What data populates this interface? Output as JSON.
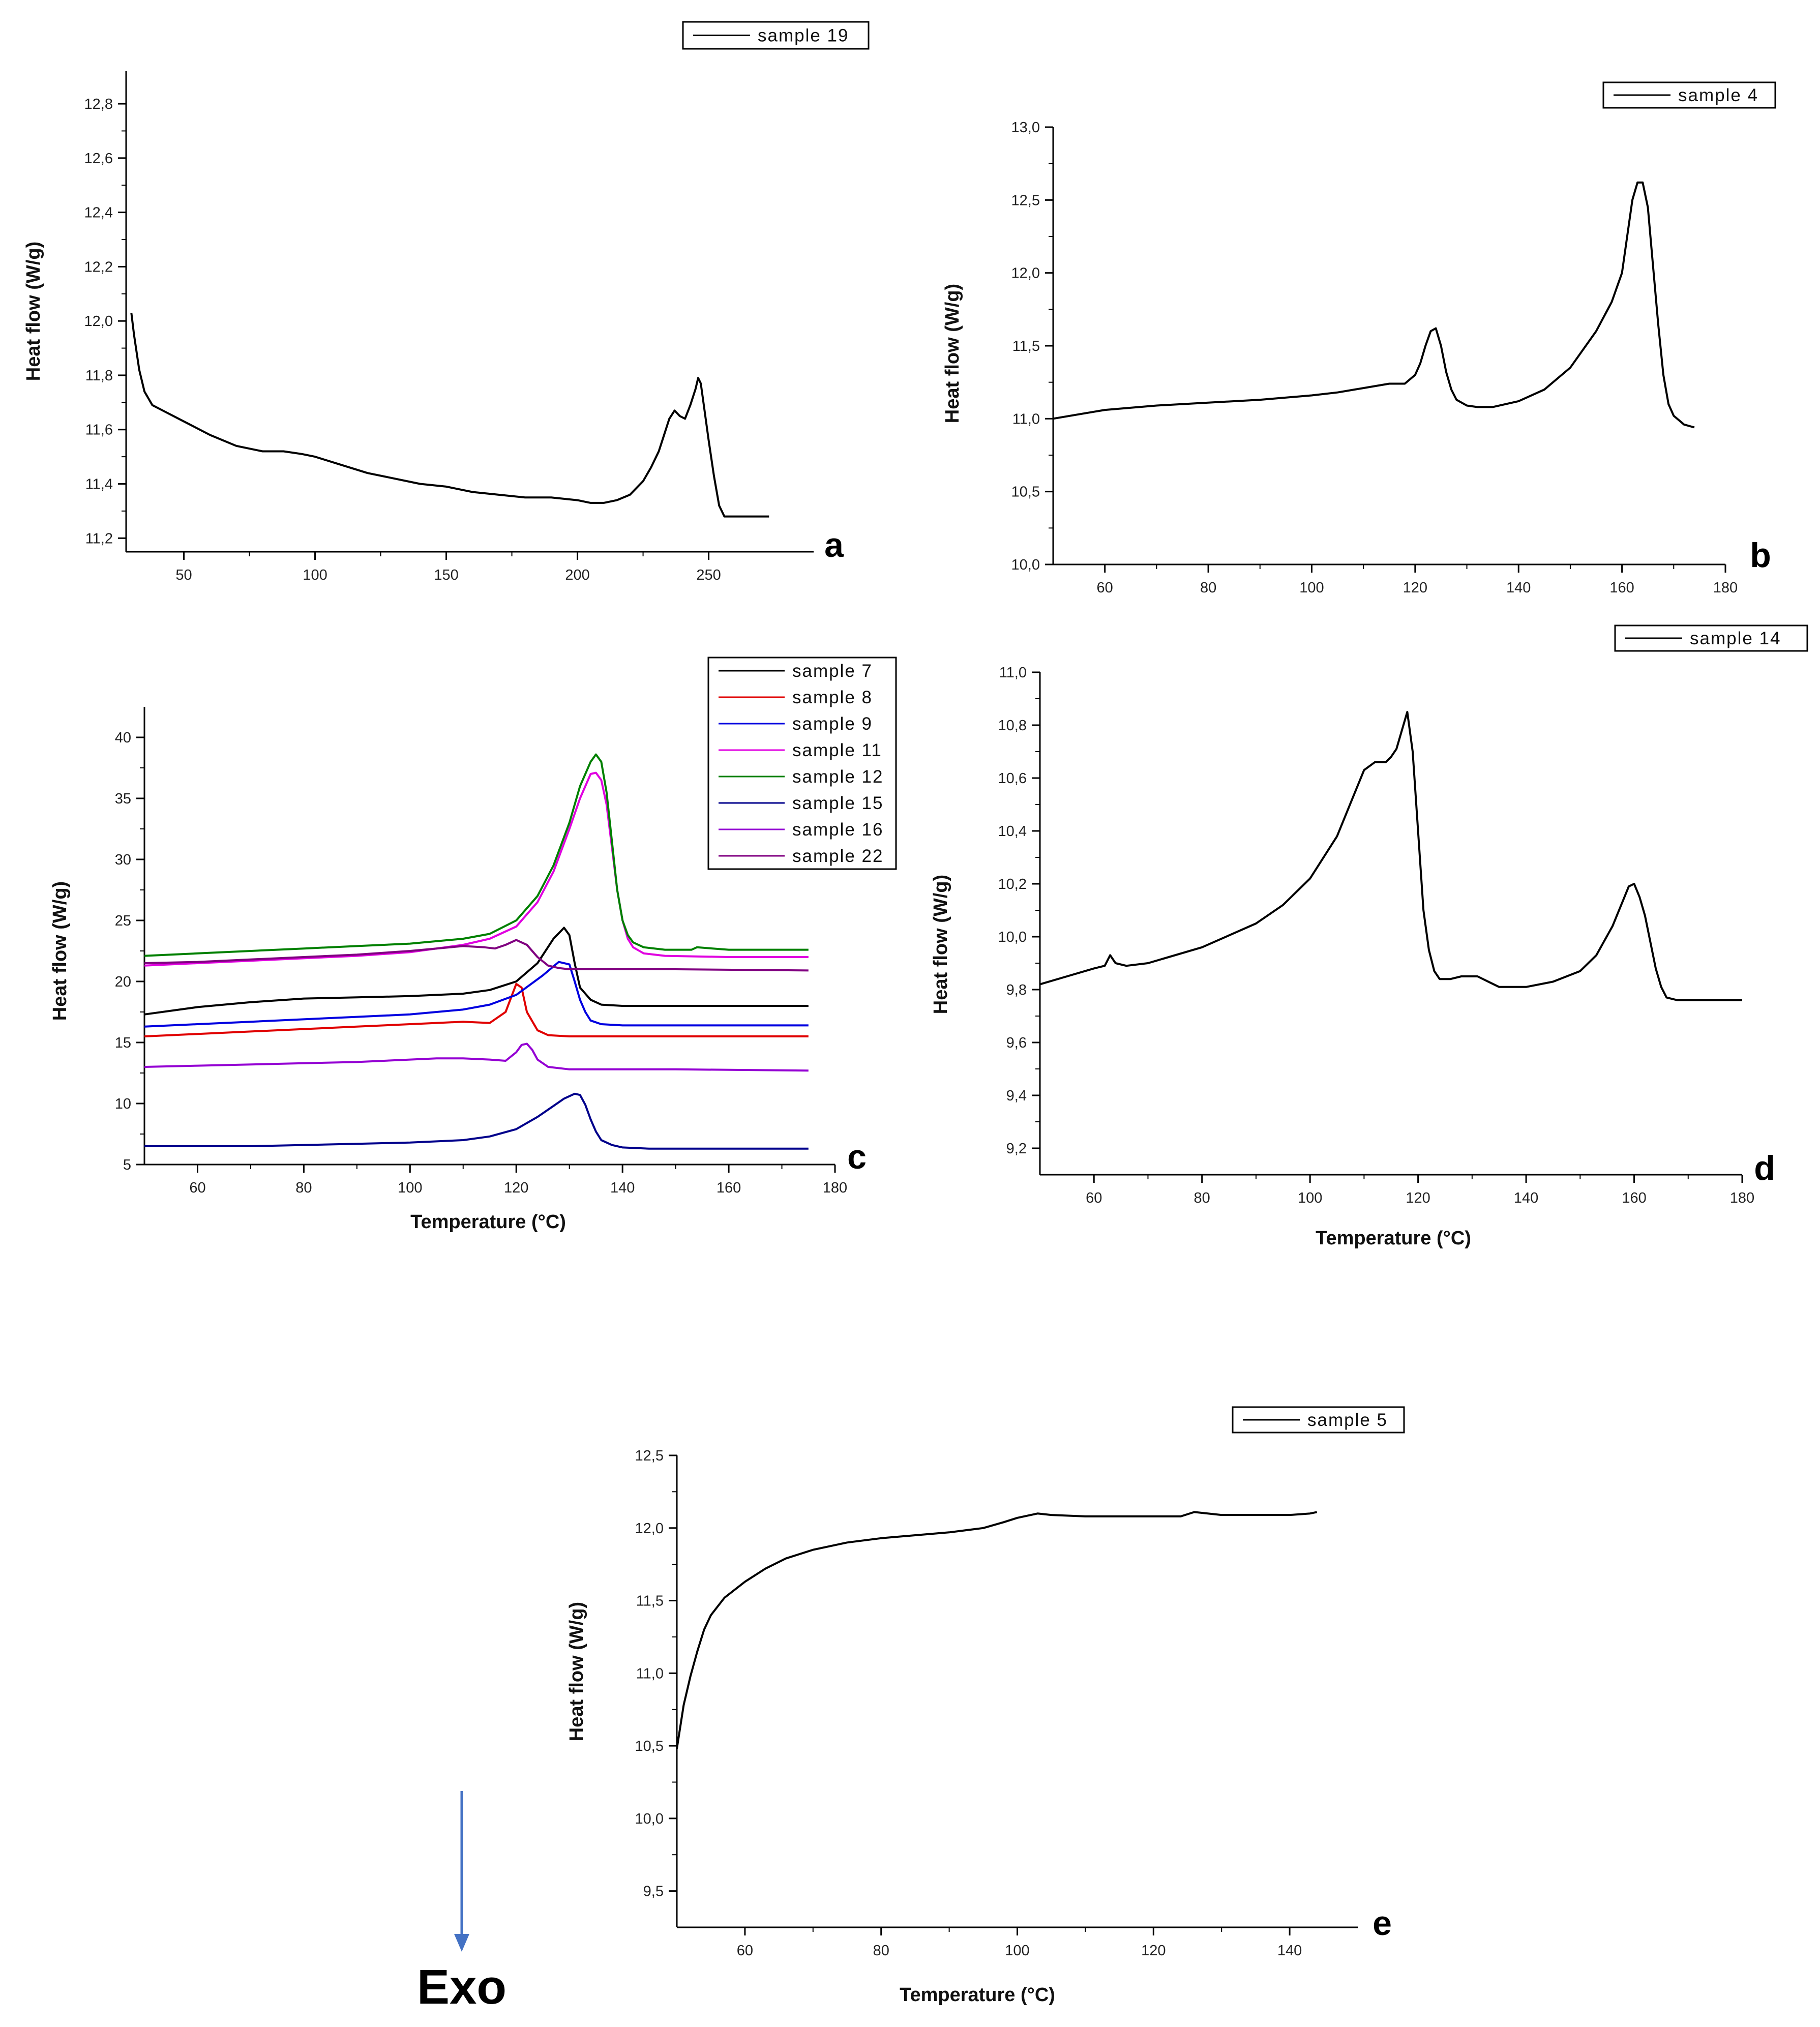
{
  "figure": {
    "exo_label": "Exo",
    "exo_arrow_color": "#4472C4"
  },
  "chart_data": [
    {
      "id": "a",
      "type": "line",
      "panel_label": "a",
      "xlabel": "",
      "ylabel": "Heat flow (W/g)",
      "xlim": [
        28,
        290
      ],
      "ylim": [
        11.15,
        12.92
      ],
      "xticks": [
        50,
        100,
        150,
        200,
        250
      ],
      "xtick_labels": [
        "50",
        "100",
        "150",
        "200",
        "250"
      ],
      "yticks": [
        11.2,
        11.4,
        11.6,
        11.8,
        12.0,
        12.2,
        12.4,
        12.6,
        12.8
      ],
      "ytick_labels": [
        "11,2",
        "11,4",
        "11,6",
        "11,8",
        "12,0",
        "12,2",
        "12,4",
        "12,6",
        "12,8"
      ],
      "legend_position": "top-right",
      "series": [
        {
          "name": "sample 19",
          "color": "#000000",
          "x": [
            30,
            31,
            33,
            35,
            38,
            42,
            50,
            60,
            70,
            80,
            88,
            95,
            100,
            110,
            120,
            130,
            140,
            150,
            160,
            170,
            180,
            190,
            200,
            205,
            210,
            215,
            220,
            225,
            228,
            231,
            233,
            235,
            237,
            239,
            241,
            243,
            245,
            246,
            247,
            248,
            250,
            252,
            254,
            256,
            260,
            265,
            270,
            273
          ],
          "y": [
            12.03,
            11.95,
            11.82,
            11.74,
            11.69,
            11.67,
            11.63,
            11.58,
            11.54,
            11.52,
            11.52,
            11.51,
            11.5,
            11.47,
            11.44,
            11.42,
            11.4,
            11.39,
            11.37,
            11.36,
            11.35,
            11.35,
            11.34,
            11.33,
            11.33,
            11.34,
            11.36,
            11.41,
            11.46,
            11.52,
            11.58,
            11.64,
            11.67,
            11.65,
            11.64,
            11.69,
            11.75,
            11.79,
            11.77,
            11.7,
            11.56,
            11.43,
            11.32,
            11.28,
            11.28,
            11.28,
            11.28,
            11.28
          ]
        }
      ]
    },
    {
      "id": "b",
      "type": "line",
      "panel_label": "b",
      "xlabel": "",
      "ylabel": "Heat flow (W/g)",
      "xlim": [
        50,
        180
      ],
      "ylim": [
        10.0,
        13.0
      ],
      "xticks": [
        60,
        80,
        100,
        120,
        140,
        160,
        180
      ],
      "xtick_labels": [
        "60",
        "80",
        "100",
        "120",
        "140",
        "160",
        "180"
      ],
      "yticks": [
        10.0,
        10.5,
        11.0,
        11.5,
        12.0,
        12.5,
        13.0
      ],
      "ytick_labels": [
        "10,0",
        "10,5",
        "11,0",
        "11,5",
        "12,0",
        "12,5",
        "13,0"
      ],
      "legend_position": "top-right",
      "series": [
        {
          "name": "sample 4",
          "color": "#000000",
          "x": [
            50,
            55,
            60,
            70,
            80,
            90,
            100,
            105,
            110,
            115,
            118,
            120,
            121,
            122,
            123,
            124,
            125,
            126,
            127,
            128,
            130,
            132,
            135,
            140,
            145,
            150,
            155,
            158,
            160,
            161,
            162,
            163,
            164,
            165,
            166,
            167,
            168,
            169,
            170,
            172,
            174
          ],
          "y": [
            11.0,
            11.03,
            11.06,
            11.09,
            11.11,
            11.13,
            11.16,
            11.18,
            11.21,
            11.24,
            11.24,
            11.3,
            11.38,
            11.5,
            11.6,
            11.62,
            11.5,
            11.32,
            11.2,
            11.13,
            11.09,
            11.08,
            11.08,
            11.12,
            11.2,
            11.35,
            11.6,
            11.8,
            12.0,
            12.25,
            12.5,
            12.62,
            12.62,
            12.45,
            12.05,
            11.65,
            11.3,
            11.1,
            11.02,
            10.96,
            10.94
          ]
        }
      ]
    },
    {
      "id": "c",
      "type": "line",
      "panel_label": "c",
      "xlabel": "Temperature (°C)",
      "ylabel": "Heat flow (W/g)",
      "xlim": [
        50,
        180
      ],
      "ylim": [
        5,
        42.5
      ],
      "xticks": [
        60,
        80,
        100,
        120,
        140,
        160,
        180
      ],
      "xtick_labels": [
        "60",
        "80",
        "100",
        "120",
        "140",
        "160",
        "180"
      ],
      "yticks": [
        5,
        10,
        15,
        20,
        25,
        30,
        35,
        40
      ],
      "ytick_labels": [
        "5",
        "10",
        "15",
        "20",
        "25",
        "30",
        "35",
        "40"
      ],
      "legend_position": "top-right",
      "series": [
        {
          "name": "sample 7",
          "color": "#000000",
          "x": [
            50,
            60,
            70,
            80,
            90,
            100,
            110,
            115,
            120,
            124,
            127,
            129,
            130,
            131,
            132,
            134,
            136,
            140,
            150,
            160,
            175
          ],
          "y": [
            17.3,
            17.9,
            18.3,
            18.6,
            18.7,
            18.8,
            19.0,
            19.3,
            20.0,
            21.5,
            23.5,
            24.4,
            23.8,
            21.5,
            19.5,
            18.5,
            18.1,
            18.0,
            18.0,
            18.0,
            18.0
          ]
        },
        {
          "name": "sample 8",
          "color": "#E00000",
          "x": [
            50,
            60,
            70,
            80,
            90,
            100,
            105,
            110,
            115,
            118,
            120,
            121,
            122,
            124,
            126,
            130,
            140,
            150,
            175
          ],
          "y": [
            15.5,
            15.7,
            15.9,
            16.1,
            16.3,
            16.5,
            16.6,
            16.7,
            16.6,
            17.5,
            19.8,
            19.5,
            17.5,
            16.0,
            15.6,
            15.5,
            15.5,
            15.5,
            15.5
          ]
        },
        {
          "name": "sample 9",
          "color": "#0000E0",
          "x": [
            50,
            60,
            70,
            80,
            90,
            100,
            110,
            115,
            120,
            125,
            128,
            130,
            131,
            132,
            133,
            134,
            136,
            140,
            150,
            175
          ],
          "y": [
            16.3,
            16.5,
            16.7,
            16.9,
            17.1,
            17.3,
            17.7,
            18.1,
            18.9,
            20.5,
            21.6,
            21.4,
            20.0,
            18.5,
            17.5,
            16.8,
            16.5,
            16.4,
            16.4,
            16.4
          ]
        },
        {
          "name": "sample 11",
          "color": "#E000E0",
          "x": [
            50,
            60,
            70,
            80,
            90,
            100,
            110,
            115,
            120,
            124,
            127,
            130,
            132,
            134,
            135,
            136,
            137,
            138,
            139,
            140,
            141,
            142,
            144,
            148,
            160,
            175
          ],
          "y": [
            21.3,
            21.5,
            21.7,
            21.9,
            22.1,
            22.4,
            23.0,
            23.5,
            24.5,
            26.5,
            29.0,
            32.5,
            35.0,
            37.0,
            37.1,
            36.5,
            34.5,
            31.0,
            27.5,
            25.0,
            23.5,
            22.8,
            22.3,
            22.1,
            22.0,
            22.0
          ]
        },
        {
          "name": "sample 12",
          "color": "#008000",
          "x": [
            50,
            60,
            70,
            80,
            90,
            100,
            110,
            115,
            120,
            124,
            127,
            130,
            132,
            134,
            135,
            136,
            137,
            138,
            139,
            140,
            141,
            142,
            144,
            148,
            153,
            154,
            160,
            175
          ],
          "y": [
            22.1,
            22.3,
            22.5,
            22.7,
            22.9,
            23.1,
            23.5,
            23.9,
            25.0,
            27.0,
            29.5,
            33.0,
            36.0,
            38.0,
            38.6,
            38.0,
            35.5,
            31.5,
            27.5,
            25.0,
            23.8,
            23.2,
            22.8,
            22.6,
            22.6,
            22.8,
            22.6,
            22.6
          ]
        },
        {
          "name": "sample 15",
          "color": "#00008B",
          "x": [
            50,
            60,
            70,
            80,
            90,
            100,
            110,
            115,
            120,
            124,
            127,
            129,
            131,
            132,
            133,
            134,
            135,
            136,
            138,
            140,
            145,
            150,
            175
          ],
          "y": [
            6.5,
            6.5,
            6.5,
            6.6,
            6.7,
            6.8,
            7.0,
            7.3,
            7.9,
            8.9,
            9.8,
            10.4,
            10.8,
            10.7,
            9.9,
            8.7,
            7.7,
            7.0,
            6.6,
            6.4,
            6.3,
            6.3,
            6.3
          ]
        },
        {
          "name": "sample 16",
          "color": "#9400D3",
          "x": [
            50,
            60,
            70,
            80,
            90,
            100,
            105,
            110,
            115,
            118,
            120,
            121,
            122,
            123,
            124,
            126,
            130,
            140,
            150,
            175
          ],
          "y": [
            13.0,
            13.1,
            13.2,
            13.3,
            13.4,
            13.6,
            13.7,
            13.7,
            13.6,
            13.5,
            14.2,
            14.8,
            14.9,
            14.4,
            13.6,
            13.0,
            12.8,
            12.8,
            12.8,
            12.7
          ]
        },
        {
          "name": "sample 22",
          "color": "#800080",
          "x": [
            50,
            60,
            70,
            80,
            90,
            100,
            105,
            110,
            114,
            116,
            118,
            120,
            122,
            124,
            126,
            128,
            130,
            135,
            140,
            150,
            175
          ],
          "y": [
            21.5,
            21.6,
            21.8,
            22.0,
            22.2,
            22.5,
            22.7,
            22.9,
            22.8,
            22.7,
            23.0,
            23.4,
            23.0,
            22.0,
            21.3,
            21.1,
            21.0,
            21.0,
            21.0,
            21.0,
            20.9
          ]
        }
      ]
    },
    {
      "id": "d",
      "type": "line",
      "panel_label": "d",
      "xlabel": "Temperature (°C)",
      "ylabel": "Heat flow (W/g)",
      "xlim": [
        50,
        180
      ],
      "ylim": [
        9.1,
        11.0
      ],
      "xticks": [
        60,
        80,
        100,
        120,
        140,
        160,
        180
      ],
      "xtick_labels": [
        "60",
        "80",
        "100",
        "120",
        "140",
        "160",
        "180"
      ],
      "yticks": [
        9.2,
        9.4,
        9.6,
        9.8,
        10.0,
        10.2,
        10.4,
        10.6,
        10.8,
        11.0
      ],
      "ytick_labels": [
        "9,2",
        "9,4",
        "9,6",
        "9,8",
        "10,0",
        "10,2",
        "10,4",
        "10,6",
        "10,8",
        "11,0"
      ],
      "legend_position": "top-right",
      "series": [
        {
          "name": "sample 14",
          "color": "#000000",
          "x": [
            50,
            55,
            60,
            62,
            63,
            64,
            66,
            70,
            80,
            90,
            95,
            100,
            105,
            108,
            110,
            112,
            114,
            115,
            116,
            117,
            118,
            119,
            120,
            121,
            122,
            123,
            124,
            126,
            128,
            130,
            131,
            133,
            135,
            140,
            145,
            150,
            153,
            156,
            158,
            159,
            160,
            161,
            162,
            163,
            164,
            165,
            166,
            168,
            170,
            175,
            180
          ],
          "y": [
            9.82,
            9.85,
            9.88,
            9.89,
            9.93,
            9.9,
            9.89,
            9.9,
            9.96,
            10.05,
            10.12,
            10.22,
            10.38,
            10.53,
            10.63,
            10.66,
            10.66,
            10.68,
            10.71,
            10.78,
            10.85,
            10.7,
            10.4,
            10.1,
            9.95,
            9.87,
            9.84,
            9.84,
            9.85,
            9.85,
            9.85,
            9.83,
            9.81,
            9.81,
            9.83,
            9.87,
            9.93,
            10.04,
            10.14,
            10.19,
            10.2,
            10.15,
            10.08,
            9.98,
            9.88,
            9.81,
            9.77,
            9.76,
            9.76,
            9.76,
            9.76
          ]
        }
      ]
    },
    {
      "id": "e",
      "type": "line",
      "panel_label": "e",
      "xlabel": "Temperature (°C)",
      "ylabel": "Heat flow (W/g)",
      "xlim": [
        50,
        150
      ],
      "ylim": [
        9.25,
        12.5
      ],
      "xticks": [
        60,
        80,
        100,
        120,
        140
      ],
      "xtick_labels": [
        "60",
        "80",
        "100",
        "120",
        "140"
      ],
      "yticks": [
        9.5,
        10.0,
        10.5,
        11.0,
        11.5,
        12.0,
        12.5
      ],
      "ytick_labels": [
        "9,5",
        "10,0",
        "10,5",
        "11,0",
        "11,5",
        "12,0",
        "12,5"
      ],
      "legend_position": "top-right",
      "series": [
        {
          "name": "sample 5",
          "color": "#000000",
          "x": [
            50,
            51,
            52,
            53,
            54,
            55,
            57,
            60,
            63,
            66,
            70,
            75,
            80,
            85,
            90,
            95,
            98,
            100,
            102,
            103,
            105,
            110,
            115,
            120,
            124,
            126,
            128,
            130,
            135,
            140,
            143,
            144
          ],
          "y": [
            10.48,
            10.78,
            10.98,
            11.15,
            11.3,
            11.4,
            11.52,
            11.63,
            11.72,
            11.79,
            11.85,
            11.9,
            11.93,
            11.95,
            11.97,
            12.0,
            12.04,
            12.07,
            12.09,
            12.1,
            12.09,
            12.08,
            12.08,
            12.08,
            12.08,
            12.11,
            12.1,
            12.09,
            12.09,
            12.09,
            12.1,
            12.11
          ]
        }
      ]
    }
  ]
}
